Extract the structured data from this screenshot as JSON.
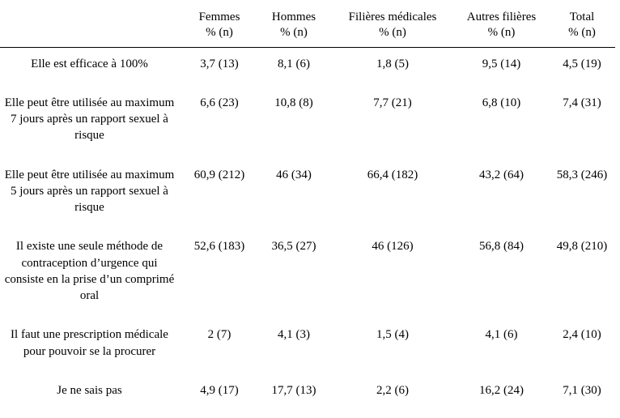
{
  "table": {
    "columns": [
      {
        "line1": "Femmes",
        "line2": "% (n)"
      },
      {
        "line1": "Hommes",
        "line2": "% (n)"
      },
      {
        "line1": "Filières  médicales",
        "line2": "% (n)"
      },
      {
        "line1": "Autres  filières",
        "line2": "% (n)"
      },
      {
        "line1": "Total",
        "line2": "% (n)"
      }
    ],
    "rows": [
      {
        "label": "Elle  est efficace  à 100%",
        "cells": [
          "3,7 (13)",
          "8,1 (6)",
          "1,8 (5)",
          "9,5 (14)",
          "4,5 (19)"
        ]
      },
      {
        "label": "Elle  peut être utilisée  au maximum  7 jours  après un rapport sexuel  à risque",
        "cells": [
          "6,6 (23)",
          "10,8 (8)",
          "7,7 (21)",
          "6,8 (10)",
          "7,4 (31)"
        ]
      },
      {
        "label": "Elle  peut être utilisée  au maximum  5 jours  après un rapport sexuel  à risque",
        "cells": [
          "60,9 (212)",
          "46 (34)",
          "66,4 (182)",
          "43,2 (64)",
          "58,3 (246)"
        ]
      },
      {
        "label": "Il existe  une seule  méthode de contraception  d’urgence qui consiste  en la  prise  d’un comprimé  oral",
        "cells": [
          "52,6 (183)",
          "36,5 (27)",
          "46 (126)",
          "56,8 (84)",
          "49,8 (210)"
        ]
      },
      {
        "label": "Il faut  une  prescription médicale  pour pouvoir  se la procurer",
        "cells": [
          "2 (7)",
          "4,1 (3)",
          "1,5 (4)",
          "4,1 (6)",
          "2,4 (10)"
        ]
      },
      {
        "label": "Je ne sais  pas",
        "cells": [
          "4,9 (17)",
          "17,7 (13)",
          "2,2 (6)",
          "16,2 (24)",
          "7,1 (30)"
        ]
      }
    ]
  }
}
